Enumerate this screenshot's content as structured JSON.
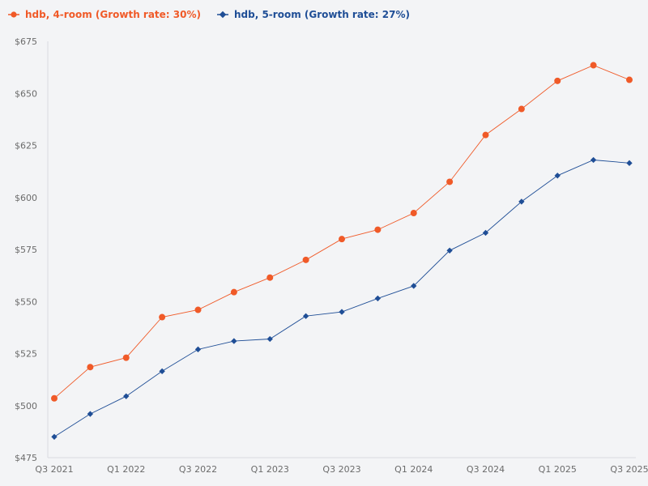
{
  "chart_data": {
    "type": "line",
    "title": "",
    "xlabel": "",
    "ylabel": "",
    "categories": [
      "Q3 2021",
      "Q4 2021",
      "Q1 2022",
      "Q2 2022",
      "Q3 2022",
      "Q4 2022",
      "Q1 2023",
      "Q2 2023",
      "Q3 2023",
      "Q4 2023",
      "Q1 2024",
      "Q2 2024",
      "Q3 2024",
      "Q4 2024",
      "Q1 2025",
      "Q2 2025",
      "Q3 2025"
    ],
    "x_tick_labels": [
      "Q3 2021",
      "Q1 2022",
      "Q3 2022",
      "Q1 2023",
      "Q3 2023",
      "Q1 2024",
      "Q3 2024",
      "Q1 2025",
      "Q3 2025"
    ],
    "y_ticks": [
      475,
      500,
      525,
      550,
      575,
      600,
      625,
      650,
      675
    ],
    "y_tick_labels": [
      "$475",
      "$500",
      "$525",
      "$550",
      "$575",
      "$600",
      "$625",
      "$650",
      "$675"
    ],
    "ylim": [
      475,
      675
    ],
    "grid": false,
    "legend_position": "top-left",
    "series": [
      {
        "name": "hdb, 4-room (Growth rate: 30%)",
        "color": "#f05a28",
        "marker": "circle",
        "values": [
          503.5,
          518.5,
          523,
          542.5,
          546,
          554.5,
          561.5,
          570,
          580,
          584.5,
          592.5,
          607.5,
          630,
          642.5,
          656,
          663.5,
          656.5
        ]
      },
      {
        "name": "hdb, 5-room (Growth rate: 27%)",
        "color": "#1f4e96",
        "marker": "diamond",
        "values": [
          485,
          496,
          504.5,
          516.5,
          527,
          531,
          532,
          543,
          545,
          551.5,
          557.5,
          574.5,
          583,
          598,
          610.5,
          618,
          616.5
        ]
      }
    ]
  }
}
